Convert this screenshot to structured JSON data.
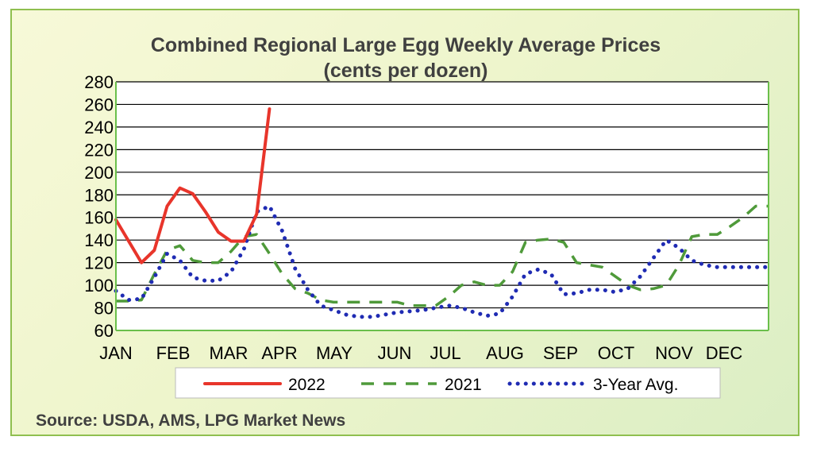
{
  "chart_data": {
    "type": "line",
    "title": "Combined Regional Large Egg Weekly Average Prices",
    "subtitle": "(cents per dozen)",
    "xlabel": "",
    "ylabel": "",
    "ylim": [
      60,
      280
    ],
    "yticks": [
      60,
      80,
      100,
      120,
      140,
      160,
      180,
      200,
      220,
      240,
      260,
      280
    ],
    "xlim": [
      1,
      52
    ],
    "xtick_labels": [
      "JAN",
      "FEB",
      "MAR",
      "APR",
      "MAY",
      "JUN",
      "JUL",
      "AUG",
      "SEP",
      "OCT",
      "NOV",
      "DEC"
    ],
    "grid": true,
    "legend_position": "bottom",
    "series": [
      {
        "name": "2022",
        "color": "#e8352b",
        "style": "solid",
        "x": [
          1,
          3,
          4,
          5,
          6,
          7,
          8,
          9,
          10,
          11,
          12,
          13
        ],
        "y": [
          158,
          120,
          131,
          170,
          186,
          181,
          165,
          147,
          139,
          139,
          163,
          256
        ]
      },
      {
        "name": "2021",
        "color": "#4f9a3a",
        "style": "dashed",
        "x": [
          1,
          2,
          3,
          4,
          5,
          6,
          7,
          8,
          9,
          10,
          11,
          12,
          13,
          14,
          15,
          16,
          17,
          18,
          19,
          20,
          21,
          22,
          23,
          24,
          25,
          26,
          27,
          28,
          29,
          30,
          31,
          32,
          33,
          34,
          35,
          36,
          37,
          38,
          39,
          40,
          41,
          42,
          43,
          44,
          45,
          46,
          47,
          48,
          49,
          50,
          51,
          52
        ],
        "y": [
          86,
          86,
          87,
          110,
          131,
          135,
          122,
          120,
          120,
          130,
          143,
          145,
          128,
          110,
          97,
          93,
          87,
          85,
          85,
          85,
          85,
          85,
          85,
          82,
          82,
          82,
          90,
          100,
          103,
          100,
          100,
          112,
          138,
          140,
          141,
          138,
          120,
          118,
          116,
          108,
          100,
          96,
          97,
          100,
          118,
          143,
          145,
          145,
          152,
          160,
          170,
          170
        ]
      },
      {
        "name": "3-Year Avg.",
        "color": "#1f2bb3",
        "style": "dotted",
        "x": [
          1,
          2,
          3,
          4,
          5,
          6,
          7,
          8,
          9,
          10,
          11,
          12,
          13,
          14,
          15,
          16,
          17,
          18,
          19,
          20,
          21,
          22,
          23,
          24,
          25,
          26,
          27,
          28,
          29,
          30,
          31,
          32,
          33,
          34,
          35,
          36,
          37,
          38,
          39,
          40,
          41,
          42,
          43,
          44,
          45,
          46,
          47,
          48,
          49,
          50,
          51,
          52
        ],
        "y": [
          95,
          87,
          88,
          107,
          128,
          122,
          107,
          104,
          104,
          112,
          132,
          165,
          170,
          148,
          115,
          96,
          82,
          78,
          74,
          72,
          72,
          74,
          76,
          77,
          78,
          80,
          82,
          80,
          76,
          73,
          75,
          90,
          110,
          114,
          110,
          92,
          93,
          96,
          96,
          94,
          97,
          108,
          124,
          140,
          133,
          122,
          118,
          116,
          116,
          116,
          116,
          116
        ]
      }
    ]
  },
  "footer": {
    "source": "Source: USDA, AMS, LPG  Market News"
  }
}
